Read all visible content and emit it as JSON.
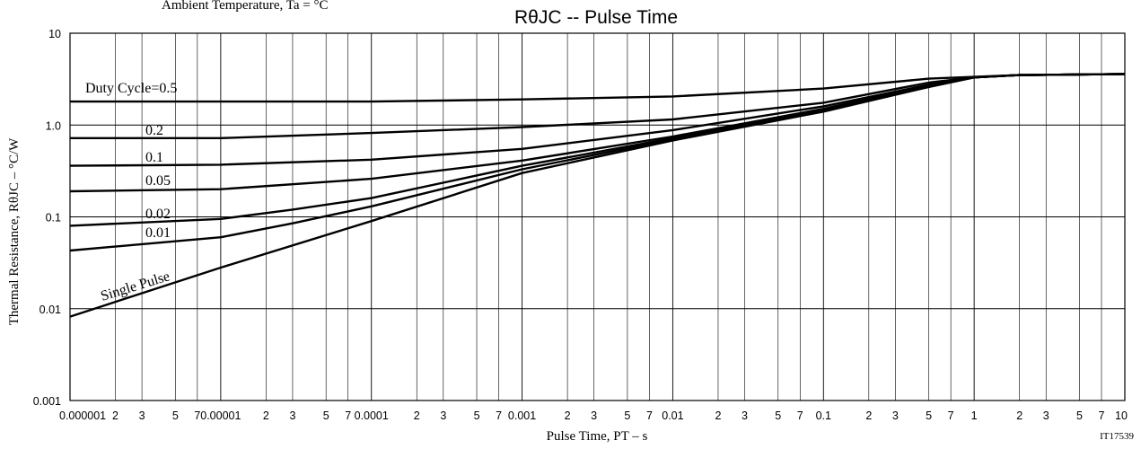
{
  "chart_data": {
    "type": "line",
    "title": "RθJC -- Pulse Time",
    "header_partial": "Ambient Temperature, Ta = °C",
    "xlabel": "Pulse Time, PT  –  s",
    "ylabel": "Thermal Resistance, RθJC  –  °C/W",
    "x_scale": "log",
    "y_scale": "log",
    "xlim": [
      1e-06,
      10
    ],
    "ylim": [
      0.001,
      10
    ],
    "grid": true,
    "figure_id": "IT17539",
    "x_tick_labels": [
      "0.000001",
      "2",
      "3",
      "5",
      "7",
      "0.00001",
      "2",
      "3",
      "5",
      "7",
      "0.0001",
      "2",
      "3",
      "5",
      "7",
      "0.001",
      "2",
      "3",
      "5",
      "7",
      "0.01",
      "2",
      "3",
      "5",
      "7",
      "0.1",
      "2",
      "3",
      "5",
      "7",
      "1",
      "2",
      "3",
      "5",
      "7",
      "10"
    ],
    "y_tick_labels": [
      "0.001",
      "0.01",
      "0.1",
      "1.0",
      "10"
    ],
    "series": [
      {
        "name": "Duty Cycle=0.5",
        "x": [
          1e-06,
          0.0001,
          0.001,
          0.01,
          0.1,
          0.5,
          1,
          2,
          10
        ],
        "y": [
          1.8,
          1.8,
          1.9,
          2.05,
          2.5,
          3.2,
          3.35,
          3.5,
          3.6
        ]
      },
      {
        "name": "0.2",
        "x": [
          1e-06,
          1e-05,
          0.0001,
          0.001,
          0.01,
          0.1,
          0.5,
          1,
          2,
          10
        ],
        "y": [
          0.72,
          0.72,
          0.82,
          0.95,
          1.15,
          1.75,
          2.9,
          3.3,
          3.5,
          3.6
        ]
      },
      {
        "name": "0.1",
        "x": [
          1e-06,
          1e-05,
          0.0001,
          0.001,
          0.01,
          0.1,
          0.5,
          1,
          2,
          10
        ],
        "y": [
          0.36,
          0.37,
          0.42,
          0.55,
          0.88,
          1.6,
          2.75,
          3.3,
          3.5,
          3.6
        ]
      },
      {
        "name": "0.05",
        "x": [
          1e-06,
          1e-05,
          0.0001,
          0.001,
          0.01,
          0.1,
          0.5,
          1,
          2,
          10
        ],
        "y": [
          0.19,
          0.2,
          0.26,
          0.41,
          0.75,
          1.5,
          2.7,
          3.3,
          3.5,
          3.6
        ]
      },
      {
        "name": "0.02",
        "x": [
          1e-06,
          1e-05,
          3e-05,
          0.0001,
          0.001,
          0.01,
          0.1,
          0.5,
          1,
          2,
          10
        ],
        "y": [
          0.08,
          0.095,
          0.12,
          0.16,
          0.36,
          0.72,
          1.45,
          2.65,
          3.3,
          3.5,
          3.6
        ]
      },
      {
        "name": "0.01",
        "x": [
          1e-06,
          1e-05,
          3e-05,
          0.0001,
          0.001,
          0.01,
          0.1,
          0.5,
          1,
          2,
          10
        ],
        "y": [
          0.043,
          0.06,
          0.085,
          0.13,
          0.33,
          0.7,
          1.42,
          2.6,
          3.3,
          3.5,
          3.6
        ]
      },
      {
        "name": "Single Pulse",
        "x": [
          1e-06,
          1e-05,
          0.0001,
          0.001,
          0.01,
          0.1,
          0.5,
          1,
          2,
          10
        ],
        "y": [
          0.0082,
          0.028,
          0.09,
          0.3,
          0.68,
          1.4,
          2.6,
          3.3,
          3.5,
          3.6
        ]
      }
    ]
  }
}
